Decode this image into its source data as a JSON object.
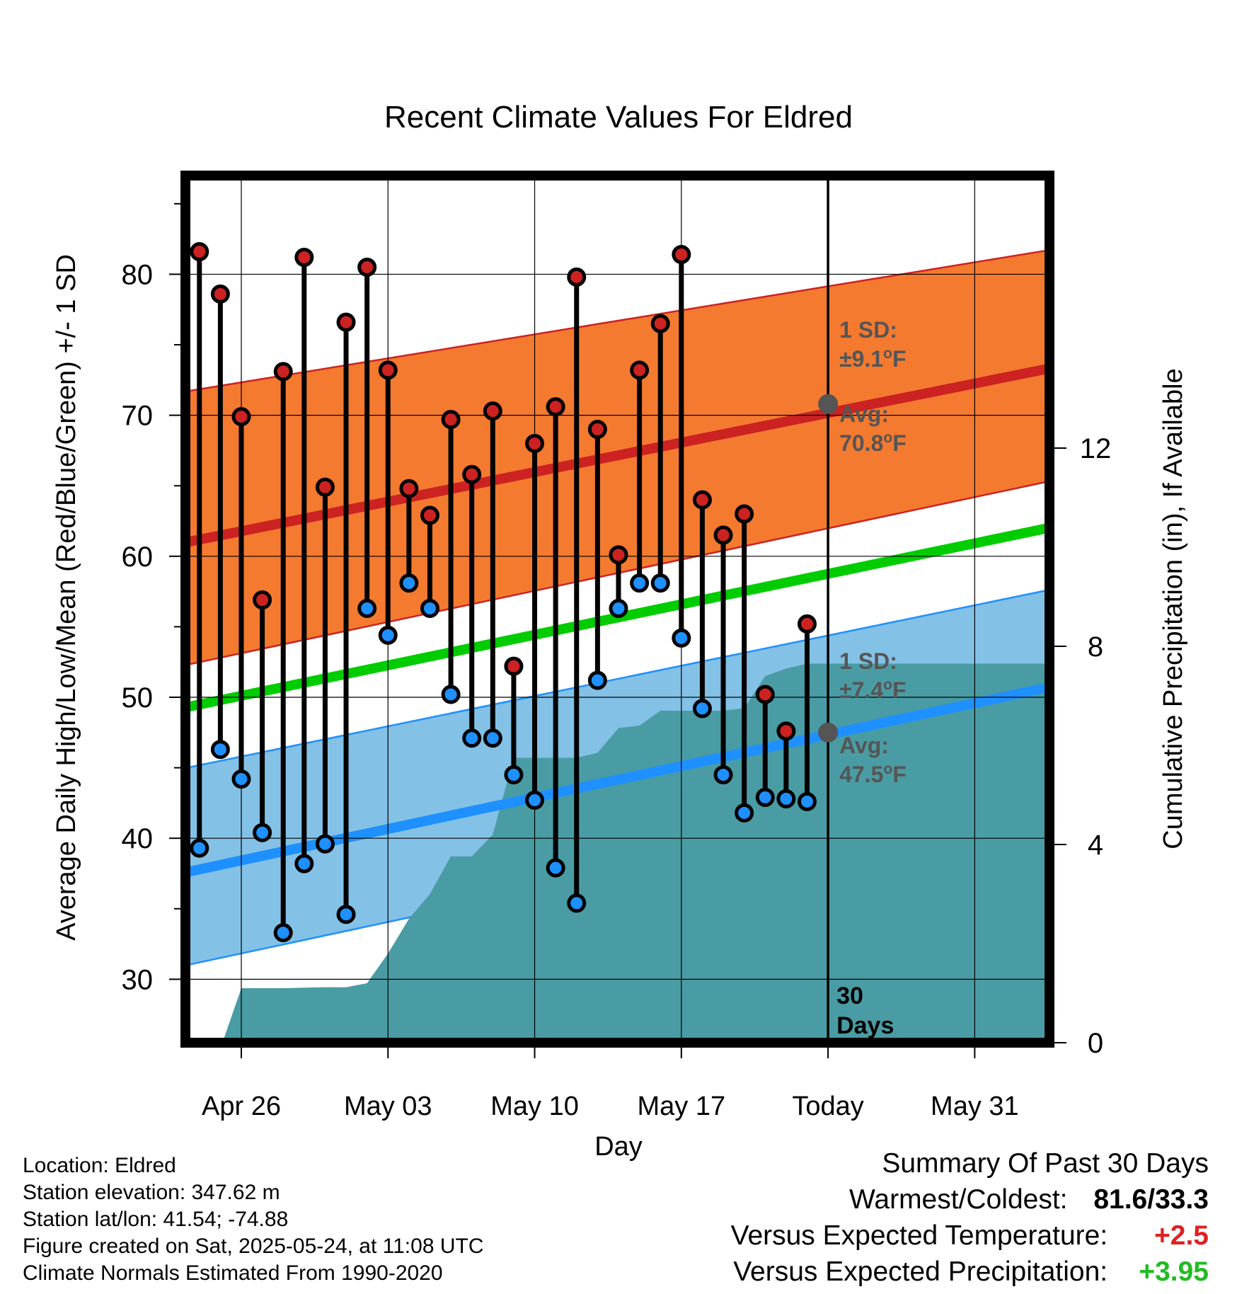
{
  "chart_data": {
    "type": "line",
    "title": "Recent Climate Values For Eldred",
    "xlabel": "Day",
    "ylabel": "Average Daily High/Low/Mean (Red/Blue/Green) +/- 1 SD",
    "y2label": "Cumulative Precipitation (in), If Available",
    "x_ticks": [
      "Apr 26",
      "May 03",
      "May 10",
      "May 17",
      "Today",
      "May 31"
    ],
    "x_tick_days": [
      2,
      9,
      16,
      23,
      30,
      37
    ],
    "xlim": [
      -0.6,
      40.5
    ],
    "ylim": [
      25.5,
      87
    ],
    "y_ticks": [
      30,
      40,
      50,
      60,
      70,
      80
    ],
    "y2lim": [
      0,
      17.5
    ],
    "y2_ticks": [
      0,
      4,
      8,
      12
    ],
    "grid": true,
    "colors": {
      "high_line": "#cc2222",
      "high_band": "#f47a30",
      "low_line": "#1e90ff",
      "low_band": "#84c1e6",
      "mean_line": "#00cc00",
      "precip": "#4a9ca4",
      "high_dot": "#cc2222",
      "low_dot": "#1e90ff"
    },
    "normals": {
      "days": [
        -0.6,
        40.5
      ],
      "high_avg": [
        61.0,
        73.3
      ],
      "high_sd_lower": [
        52.3,
        65.3
      ],
      "high_sd_upper": [
        71.7,
        81.7
      ],
      "low_avg": [
        37.6,
        50.7
      ],
      "low_sd_lower": [
        31.0,
        44.1
      ],
      "low_sd_upper": [
        45.0,
        57.6
      ],
      "mean_avg": [
        49.3,
        62.0
      ]
    },
    "observations": {
      "days": [
        0,
        1,
        2,
        3,
        4,
        5,
        6,
        7,
        8,
        9,
        10,
        11,
        12,
        13,
        14,
        15,
        16,
        17,
        18,
        19,
        20,
        21,
        22,
        23,
        24,
        25,
        26,
        27,
        28,
        29
      ],
      "highs": [
        81.6,
        78.6,
        69.9,
        56.9,
        73.1,
        81.2,
        64.9,
        76.6,
        80.5,
        73.2,
        64.8,
        62.9,
        69.7,
        65.8,
        70.3,
        52.2,
        68.0,
        70.6,
        79.8,
        69.0,
        60.1,
        73.2,
        76.5,
        81.4,
        64.0,
        61.5,
        63.0,
        50.2,
        47.6,
        55.2
      ],
      "lows": [
        39.3,
        46.3,
        44.2,
        40.4,
        33.3,
        38.2,
        39.6,
        34.6,
        56.3,
        54.4,
        58.1,
        56.3,
        50.2,
        47.1,
        47.1,
        44.5,
        42.7,
        37.9,
        35.4,
        51.2,
        56.3,
        58.1,
        58.1,
        54.2,
        49.2,
        44.5,
        41.8,
        42.9,
        42.8,
        42.6
      ]
    },
    "precip": {
      "days": [
        -0.6,
        1.1,
        2.0,
        3.0,
        4.0,
        5.0,
        6.0,
        7.0,
        8.0,
        9.0,
        10.0,
        11.0,
        12.0,
        13.0,
        14.0,
        15.0,
        16.0,
        17.0,
        18.0,
        19.0,
        20.0,
        21.0,
        22.0,
        23.0,
        24.0,
        25.0,
        26.0,
        27.0,
        28.0,
        29.0,
        30.0,
        40.5
      ],
      "cumulative": [
        0,
        0,
        1.1,
        1.1,
        1.1,
        1.11,
        1.12,
        1.12,
        1.2,
        1.8,
        2.5,
        3.0,
        3.76,
        3.76,
        4.2,
        5.75,
        5.75,
        5.75,
        5.75,
        5.85,
        6.35,
        6.4,
        6.7,
        6.7,
        6.7,
        6.7,
        6.75,
        7.4,
        7.55,
        7.65,
        7.65,
        7.65
      ]
    },
    "today_marker_day": 30,
    "annotations": {
      "high_sd_label": "1 SD:",
      "high_sd_value": "±9.1",
      "high_avg_label": "Avg:",
      "high_avg_value": "70.8",
      "low_sd_label": "1 SD:",
      "low_sd_value": "±7.4",
      "low_avg_label": "Avg:",
      "low_avg_value": "47.5",
      "degree_mark": "o",
      "unit": "F",
      "high_avg_point": 70.8,
      "low_avg_point": 47.5,
      "days_count": "30",
      "days_word": "Days"
    }
  },
  "footer": {
    "location": "Location: Eldred",
    "elevation": "Station elevation: 347.62 m",
    "latlon": "Station lat/lon: 41.54; -74.88",
    "created": "Figure created on Sat, 2025-05-24, at 11:08 UTC",
    "normals": "Climate Normals Estimated From 1990-2020"
  },
  "summary": {
    "heading": "Summary Of Past 30 Days",
    "warmest_coldest_label": "Warmest/Coldest:",
    "warmest_coldest_value": "81.6/33.3",
    "temp_label": "Versus Expected Temperature:",
    "temp_value": "+2.5",
    "temp_color": "#dd2222",
    "precip_label": "Versus Expected Precipitation:",
    "precip_value": "+3.95",
    "precip_color": "#22bb22"
  }
}
